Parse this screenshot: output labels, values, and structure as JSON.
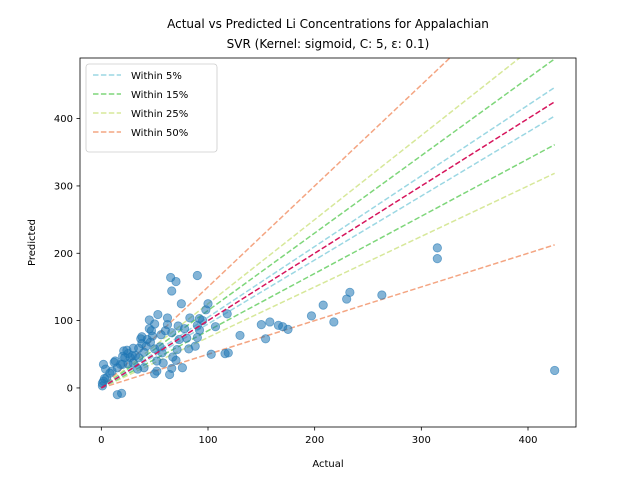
{
  "chart_data": {
    "type": "scatter",
    "title": "Actual vs Predicted Li Concentrations for Appalachian",
    "subtitle": "SVR (Kernel: sigmoid, C: 5, ε: 0.1)",
    "xlabel": "Actual",
    "ylabel": "Predicted",
    "xlim": [
      -20,
      445
    ],
    "ylim": [
      -58,
      490
    ],
    "xticks": [
      0,
      100,
      200,
      300,
      400
    ],
    "yticks": [
      0,
      100,
      200,
      300,
      400
    ],
    "grid": false,
    "legend_position": "top-left",
    "identity_line_color": "#d6155c",
    "identity_range": [
      0,
      425
    ],
    "point_color": "#1f77b4",
    "bands": [
      {
        "name": "Within 5%",
        "fraction": 0.05,
        "color": "#9bd7e3"
      },
      {
        "name": "Within 15%",
        "fraction": 0.15,
        "color": "#7ed67a"
      },
      {
        "name": "Within 25%",
        "fraction": 0.25,
        "color": "#d7e89a"
      },
      {
        "name": "Within 50%",
        "fraction": 0.5,
        "color": "#f4a582"
      }
    ],
    "points": [
      [
        425,
        26
      ],
      [
        315,
        208
      ],
      [
        315,
        192
      ],
      [
        263,
        138
      ],
      [
        233,
        142
      ],
      [
        230,
        132
      ],
      [
        218,
        98
      ],
      [
        208,
        123
      ],
      [
        197,
        107
      ],
      [
        175,
        87
      ],
      [
        170,
        91
      ],
      [
        166,
        93
      ],
      [
        158,
        98
      ],
      [
        154,
        73
      ],
      [
        150,
        94
      ],
      [
        130,
        78
      ],
      [
        119,
        52
      ],
      [
        116,
        51
      ],
      [
        118,
        110
      ],
      [
        103,
        50
      ],
      [
        107,
        91
      ],
      [
        100,
        125
      ],
      [
        98,
        116
      ],
      [
        95,
        100
      ],
      [
        90,
        167
      ],
      [
        92,
        103
      ],
      [
        90,
        93
      ],
      [
        92,
        86
      ],
      [
        90,
        75
      ],
      [
        88,
        62
      ],
      [
        83,
        104
      ],
      [
        82,
        58
      ],
      [
        80,
        74
      ],
      [
        78,
        88
      ],
      [
        76,
        30
      ],
      [
        75,
        125
      ],
      [
        73,
        72
      ],
      [
        72,
        92
      ],
      [
        71,
        57
      ],
      [
        70,
        41
      ],
      [
        70,
        158
      ],
      [
        66,
        144
      ],
      [
        65,
        164
      ],
      [
        67,
        46
      ],
      [
        66,
        82
      ],
      [
        66,
        29
      ],
      [
        64,
        20
      ],
      [
        62,
        94
      ],
      [
        62,
        104
      ],
      [
        60,
        85
      ],
      [
        58,
        37
      ],
      [
        57,
        52
      ],
      [
        56,
        79
      ],
      [
        55,
        61
      ],
      [
        53,
        109
      ],
      [
        52,
        40
      ],
      [
        52,
        25
      ],
      [
        50,
        21
      ],
      [
        50,
        58
      ],
      [
        50,
        95
      ],
      [
        48,
        77
      ],
      [
        47,
        85
      ],
      [
        46,
        68
      ],
      [
        45,
        101
      ],
      [
        45,
        88
      ],
      [
        43,
        72
      ],
      [
        42,
        62
      ],
      [
        40,
        30
      ],
      [
        40,
        53
      ],
      [
        38,
        76
      ],
      [
        38,
        66
      ],
      [
        37,
        73
      ],
      [
        35,
        59
      ],
      [
        35,
        45
      ],
      [
        34,
        28
      ],
      [
        32,
        48
      ],
      [
        30,
        37
      ],
      [
        30,
        59
      ],
      [
        29,
        48
      ],
      [
        27,
        45
      ],
      [
        25,
        51
      ],
      [
        25,
        36
      ],
      [
        24,
        56
      ],
      [
        22,
        45
      ],
      [
        21,
        55
      ],
      [
        20,
        47
      ],
      [
        20,
        35
      ],
      [
        19,
        -8
      ],
      [
        18,
        35
      ],
      [
        15,
        -10
      ],
      [
        15,
        30
      ],
      [
        13,
        40
      ],
      [
        12,
        38
      ],
      [
        10,
        25
      ],
      [
        8,
        22
      ],
      [
        5,
        15
      ],
      [
        4,
        28
      ],
      [
        3,
        14
      ],
      [
        2,
        10
      ],
      [
        2,
        35
      ],
      [
        1,
        7
      ],
      [
        1,
        3
      ]
    ]
  }
}
